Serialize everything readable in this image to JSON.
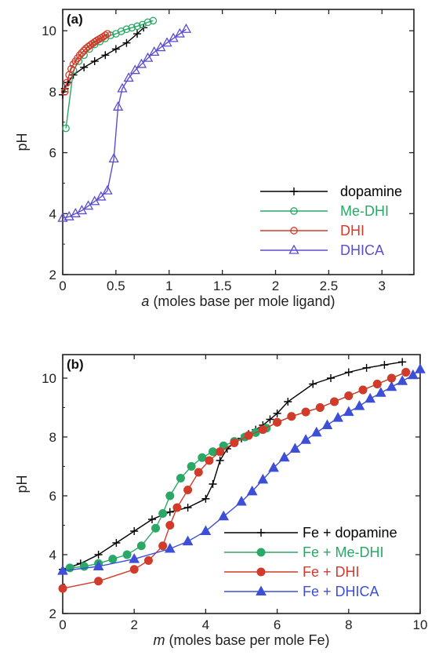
{
  "chart_data": [
    {
      "type": "line",
      "panel_label": "(a)",
      "xlabel_var": "a",
      "xlabel_rest": "(moles base per mole ligand)",
      "ylabel": "pH",
      "xlim": [
        0,
        3.3
      ],
      "ylim": [
        2,
        10.7
      ],
      "xticks": [
        0,
        0.5,
        1,
        1.5,
        2,
        2.5,
        3
      ],
      "xtick_labels": [
        "0",
        "0.5",
        "1",
        "1.5",
        "2",
        "2.5",
        "3"
      ],
      "yticks": [
        2,
        4,
        6,
        8,
        10
      ],
      "ytick_labels": [
        "2",
        "4",
        "6",
        "8",
        "10"
      ],
      "legend_position": "bottom-right",
      "series": [
        {
          "name": "dopamine",
          "color": "#000000",
          "marker": "plus",
          "x": [
            0,
            0.02,
            0.05,
            0.1,
            0.2,
            0.3,
            0.4,
            0.5,
            0.6,
            0.7,
            0.76
          ],
          "y": [
            7.9,
            8.1,
            8.3,
            8.55,
            8.8,
            9.0,
            9.2,
            9.4,
            9.6,
            9.9,
            10.1
          ]
        },
        {
          "name": "Me-DHI",
          "color": "#2aa866",
          "marker": "circle-open",
          "x": [
            0.03,
            0.1,
            0.15,
            0.2,
            0.25,
            0.3,
            0.35,
            0.4,
            0.45,
            0.5,
            0.55,
            0.6,
            0.65,
            0.7,
            0.75,
            0.8,
            0.85
          ],
          "y": [
            6.8,
            8.7,
            9.0,
            9.2,
            9.4,
            9.55,
            9.65,
            9.75,
            9.85,
            9.9,
            9.98,
            10.05,
            10.1,
            10.15,
            10.2,
            10.28,
            10.33
          ]
        },
        {
          "name": "DHI",
          "color": "#d23a2a",
          "marker": "circle-open",
          "x": [
            0.02,
            0.04,
            0.06,
            0.08,
            0.1,
            0.12,
            0.14,
            0.16,
            0.18,
            0.2,
            0.22,
            0.24,
            0.26,
            0.28,
            0.3,
            0.32,
            0.34,
            0.36,
            0.38,
            0.4,
            0.42
          ],
          "y": [
            8.0,
            8.3,
            8.55,
            8.75,
            8.9,
            9.0,
            9.1,
            9.2,
            9.28,
            9.35,
            9.42,
            9.48,
            9.53,
            9.58,
            9.63,
            9.68,
            9.72,
            9.76,
            9.8,
            9.85,
            9.9
          ]
        },
        {
          "name": "DHICA",
          "color": "#5a4ed0",
          "marker": "triangle-open",
          "x": [
            0,
            0.06,
            0.12,
            0.18,
            0.24,
            0.3,
            0.36,
            0.42,
            0.48,
            0.52,
            0.56,
            0.62,
            0.68,
            0.74,
            0.8,
            0.86,
            0.92,
            0.98,
            1.04,
            1.1,
            1.16
          ],
          "y": [
            3.85,
            3.9,
            4.0,
            4.1,
            4.25,
            4.4,
            4.55,
            4.75,
            5.8,
            7.5,
            8.1,
            8.45,
            8.7,
            8.9,
            9.1,
            9.3,
            9.45,
            9.6,
            9.75,
            9.9,
            10.05
          ]
        }
      ]
    },
    {
      "type": "line",
      "panel_label": "(b)",
      "xlabel_var": "m",
      "xlabel_rest": "(moles base per mole Fe)",
      "ylabel": "pH",
      "xlim": [
        0,
        10
      ],
      "ylim": [
        2,
        10.8
      ],
      "xticks": [
        0,
        2,
        4,
        6,
        8,
        10
      ],
      "xtick_labels": [
        "0",
        "2",
        "4",
        "6",
        "8",
        "10"
      ],
      "yticks": [
        2,
        4,
        6,
        8,
        10
      ],
      "ytick_labels": [
        "2",
        "4",
        "6",
        "8",
        "10"
      ],
      "legend_position": "bottom-right",
      "series": [
        {
          "name": "Fe + dopamine",
          "color": "#000000",
          "marker": "plus",
          "x": [
            0,
            0.5,
            1,
            1.5,
            2,
            2.5,
            3,
            3.5,
            4,
            4.2,
            4.4,
            4.6,
            4.8,
            5.0,
            5.2,
            5.4,
            5.6,
            5.8,
            6.0,
            6.3,
            7,
            7.5,
            8,
            8.5,
            9,
            9.5
          ],
          "y": [
            3.5,
            3.7,
            4.0,
            4.4,
            4.8,
            5.2,
            5.45,
            5.6,
            5.9,
            6.4,
            7.2,
            7.6,
            7.8,
            7.95,
            8.1,
            8.25,
            8.4,
            8.6,
            8.8,
            9.2,
            9.8,
            10.0,
            10.2,
            10.35,
            10.45,
            10.55
          ]
        },
        {
          "name": "Fe + Me-DHI",
          "color": "#2aa866",
          "marker": "circle-filled",
          "x": [
            0.2,
            0.6,
            1.0,
            1.4,
            1.8,
            2.2,
            2.6,
            2.8,
            3.0,
            3.3,
            3.6,
            3.9,
            4.2,
            4.5,
            4.8,
            5.1,
            5.4,
            5.7,
            6.0,
            6.4,
            6.8,
            7.2,
            7.6,
            8.0,
            8.4,
            8.8,
            9.2,
            9.6
          ],
          "y": [
            3.55,
            3.6,
            3.7,
            3.85,
            4.0,
            4.3,
            4.9,
            5.4,
            6.0,
            6.6,
            7.0,
            7.3,
            7.5,
            7.7,
            7.85,
            8.0,
            8.15,
            8.3,
            8.5,
            8.7,
            8.85,
            9.0,
            9.2,
            9.4,
            9.6,
            9.8,
            10.0,
            10.2
          ]
        },
        {
          "name": "Fe + DHI",
          "color": "#d23a2a",
          "marker": "circle-filled",
          "x": [
            0,
            1.0,
            2.0,
            2.4,
            2.8,
            3.0,
            3.2,
            3.5,
            3.8,
            4.1,
            4.4,
            4.8,
            5.2,
            5.6,
            6.0,
            6.4,
            6.8,
            7.2,
            7.6,
            8.0,
            8.4,
            8.8,
            9.2,
            9.6
          ],
          "y": [
            2.85,
            3.1,
            3.5,
            3.8,
            4.3,
            5.0,
            5.6,
            6.2,
            6.8,
            7.2,
            7.5,
            7.8,
            8.05,
            8.25,
            8.5,
            8.7,
            8.85,
            9.0,
            9.2,
            9.4,
            9.6,
            9.8,
            10.0,
            10.2
          ]
        },
        {
          "name": "Fe + DHICA",
          "color": "#3d4fd6",
          "marker": "triangle-filled",
          "x": [
            0,
            1.0,
            2.0,
            3.0,
            3.5,
            4.0,
            4.5,
            5.0,
            5.3,
            5.6,
            5.9,
            6.2,
            6.5,
            6.8,
            7.1,
            7.4,
            7.7,
            8.0,
            8.3,
            8.6,
            8.9,
            9.2,
            9.5,
            9.8,
            10.0
          ],
          "y": [
            3.45,
            3.6,
            3.85,
            4.2,
            4.45,
            4.8,
            5.3,
            5.8,
            6.15,
            6.55,
            6.95,
            7.3,
            7.6,
            7.9,
            8.15,
            8.4,
            8.65,
            8.85,
            9.05,
            9.3,
            9.5,
            9.7,
            9.9,
            10.1,
            10.3
          ]
        }
      ]
    }
  ]
}
